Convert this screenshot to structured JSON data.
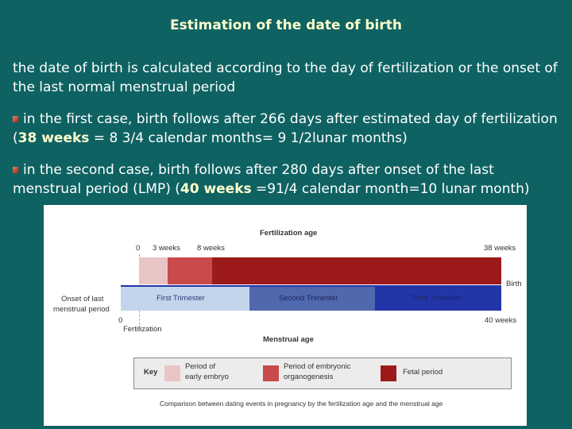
{
  "title": "Estimation of the date of birth",
  "paragraph1": "the date of birth is calculated according to the day of fertilization or the onset of the last normal menstrual period",
  "bullet1": {
    "before": "in the first case, birth follows after 266 days after estimated day of fertilization  (",
    "highlight": "38 weeks",
    "after": " = 8 3/4 calendar months= 9 1/2lunar months)"
  },
  "bullet2": {
    "before": "in the second case, birth follows after 280 days after onset of the last menstrual period (LMP) (",
    "highlight": "40 weeks",
    "after": " =91/4 calendar month=10 lunar month)"
  },
  "figure": {
    "fertilization_age_label": "Fertilization age",
    "menstrual_age_label": "Menstrual age",
    "tick_0": "0",
    "tick_3_weeks": "3 weeks",
    "tick_8_weeks": "8 weeks",
    "tick_38_weeks": "38 weeks",
    "tick_40_weeks": "40 weeks",
    "tick_0_menstrual": "0",
    "birth_label": "Birth",
    "onset_label_line1": "Onset of last",
    "onset_label_line2": "menstrual period",
    "fertilization_label": "Fertilization",
    "trimesters": [
      "First Trimester",
      "Second Trimester",
      "Third Trimester"
    ],
    "key_label": "Key",
    "key_items": [
      {
        "line1": "Period of",
        "line2": "early embryo",
        "color": "#e9c4c4"
      },
      {
        "line1": "Period of embryonic",
        "line2": "organogenesis",
        "color": "#c94a4a"
      },
      {
        "line1": "Fetal period",
        "line2": "",
        "color": "#9c1a1a"
      }
    ],
    "caption": "Comparison between dating events in pregnancy by the fertilization age and the menstrual age"
  },
  "colors": {
    "background": "#0f6262",
    "title": "#ffffcc",
    "early_embryo": "#e9c4c4",
    "organogenesis": "#c94a4a",
    "fetal": "#9c1a1a",
    "first_trimester": "#c4d4ec",
    "second_trimester": "#5068ad",
    "third_trimester": "#2236a8"
  }
}
